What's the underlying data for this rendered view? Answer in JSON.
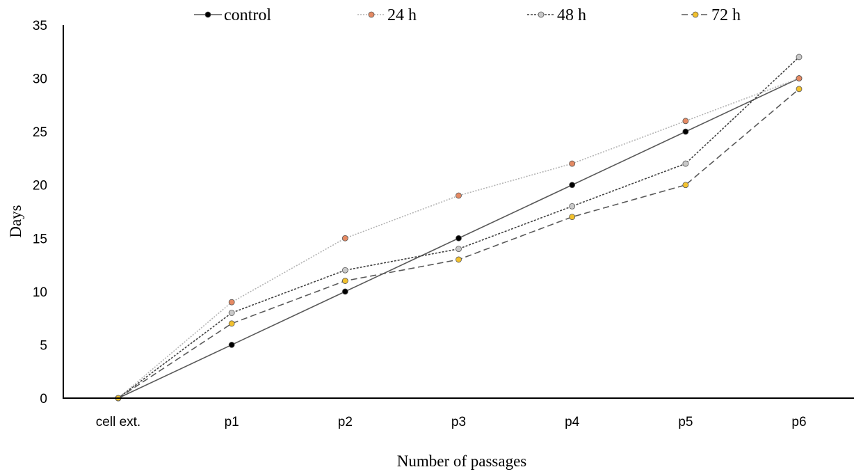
{
  "chart_data": {
    "type": "line",
    "title": "",
    "xlabel": "Number of passages",
    "ylabel": "Days",
    "categories": [
      "cell ext.",
      "p1",
      "p2",
      "p3",
      "p4",
      "p5",
      "p6"
    ],
    "ylim": [
      0,
      35
    ],
    "yticks": [
      0,
      5,
      10,
      15,
      20,
      25,
      30,
      35
    ],
    "grid": false,
    "legend_position": "top",
    "series": [
      {
        "name": "control",
        "values": [
          0,
          5,
          10,
          15,
          20,
          25,
          30
        ],
        "color": "#000000",
        "line_color": "#595959",
        "dash": "solid"
      },
      {
        "name": "24 h",
        "values": [
          0,
          9,
          15,
          19,
          22,
          26,
          30
        ],
        "color": "#e58a63",
        "line_color": "#b3b3b3",
        "dash": "dotted"
      },
      {
        "name": "48 h",
        "values": [
          0,
          8,
          12,
          14,
          18,
          22,
          32
        ],
        "color": "#c9c9c9",
        "line_color": "#404040",
        "dash": "dotted-dense"
      },
      {
        "name": "72 h",
        "values": [
          0,
          7,
          11,
          13,
          17,
          20,
          29
        ],
        "color": "#f2c12e",
        "line_color": "#595959",
        "dash": "dashed"
      }
    ]
  }
}
